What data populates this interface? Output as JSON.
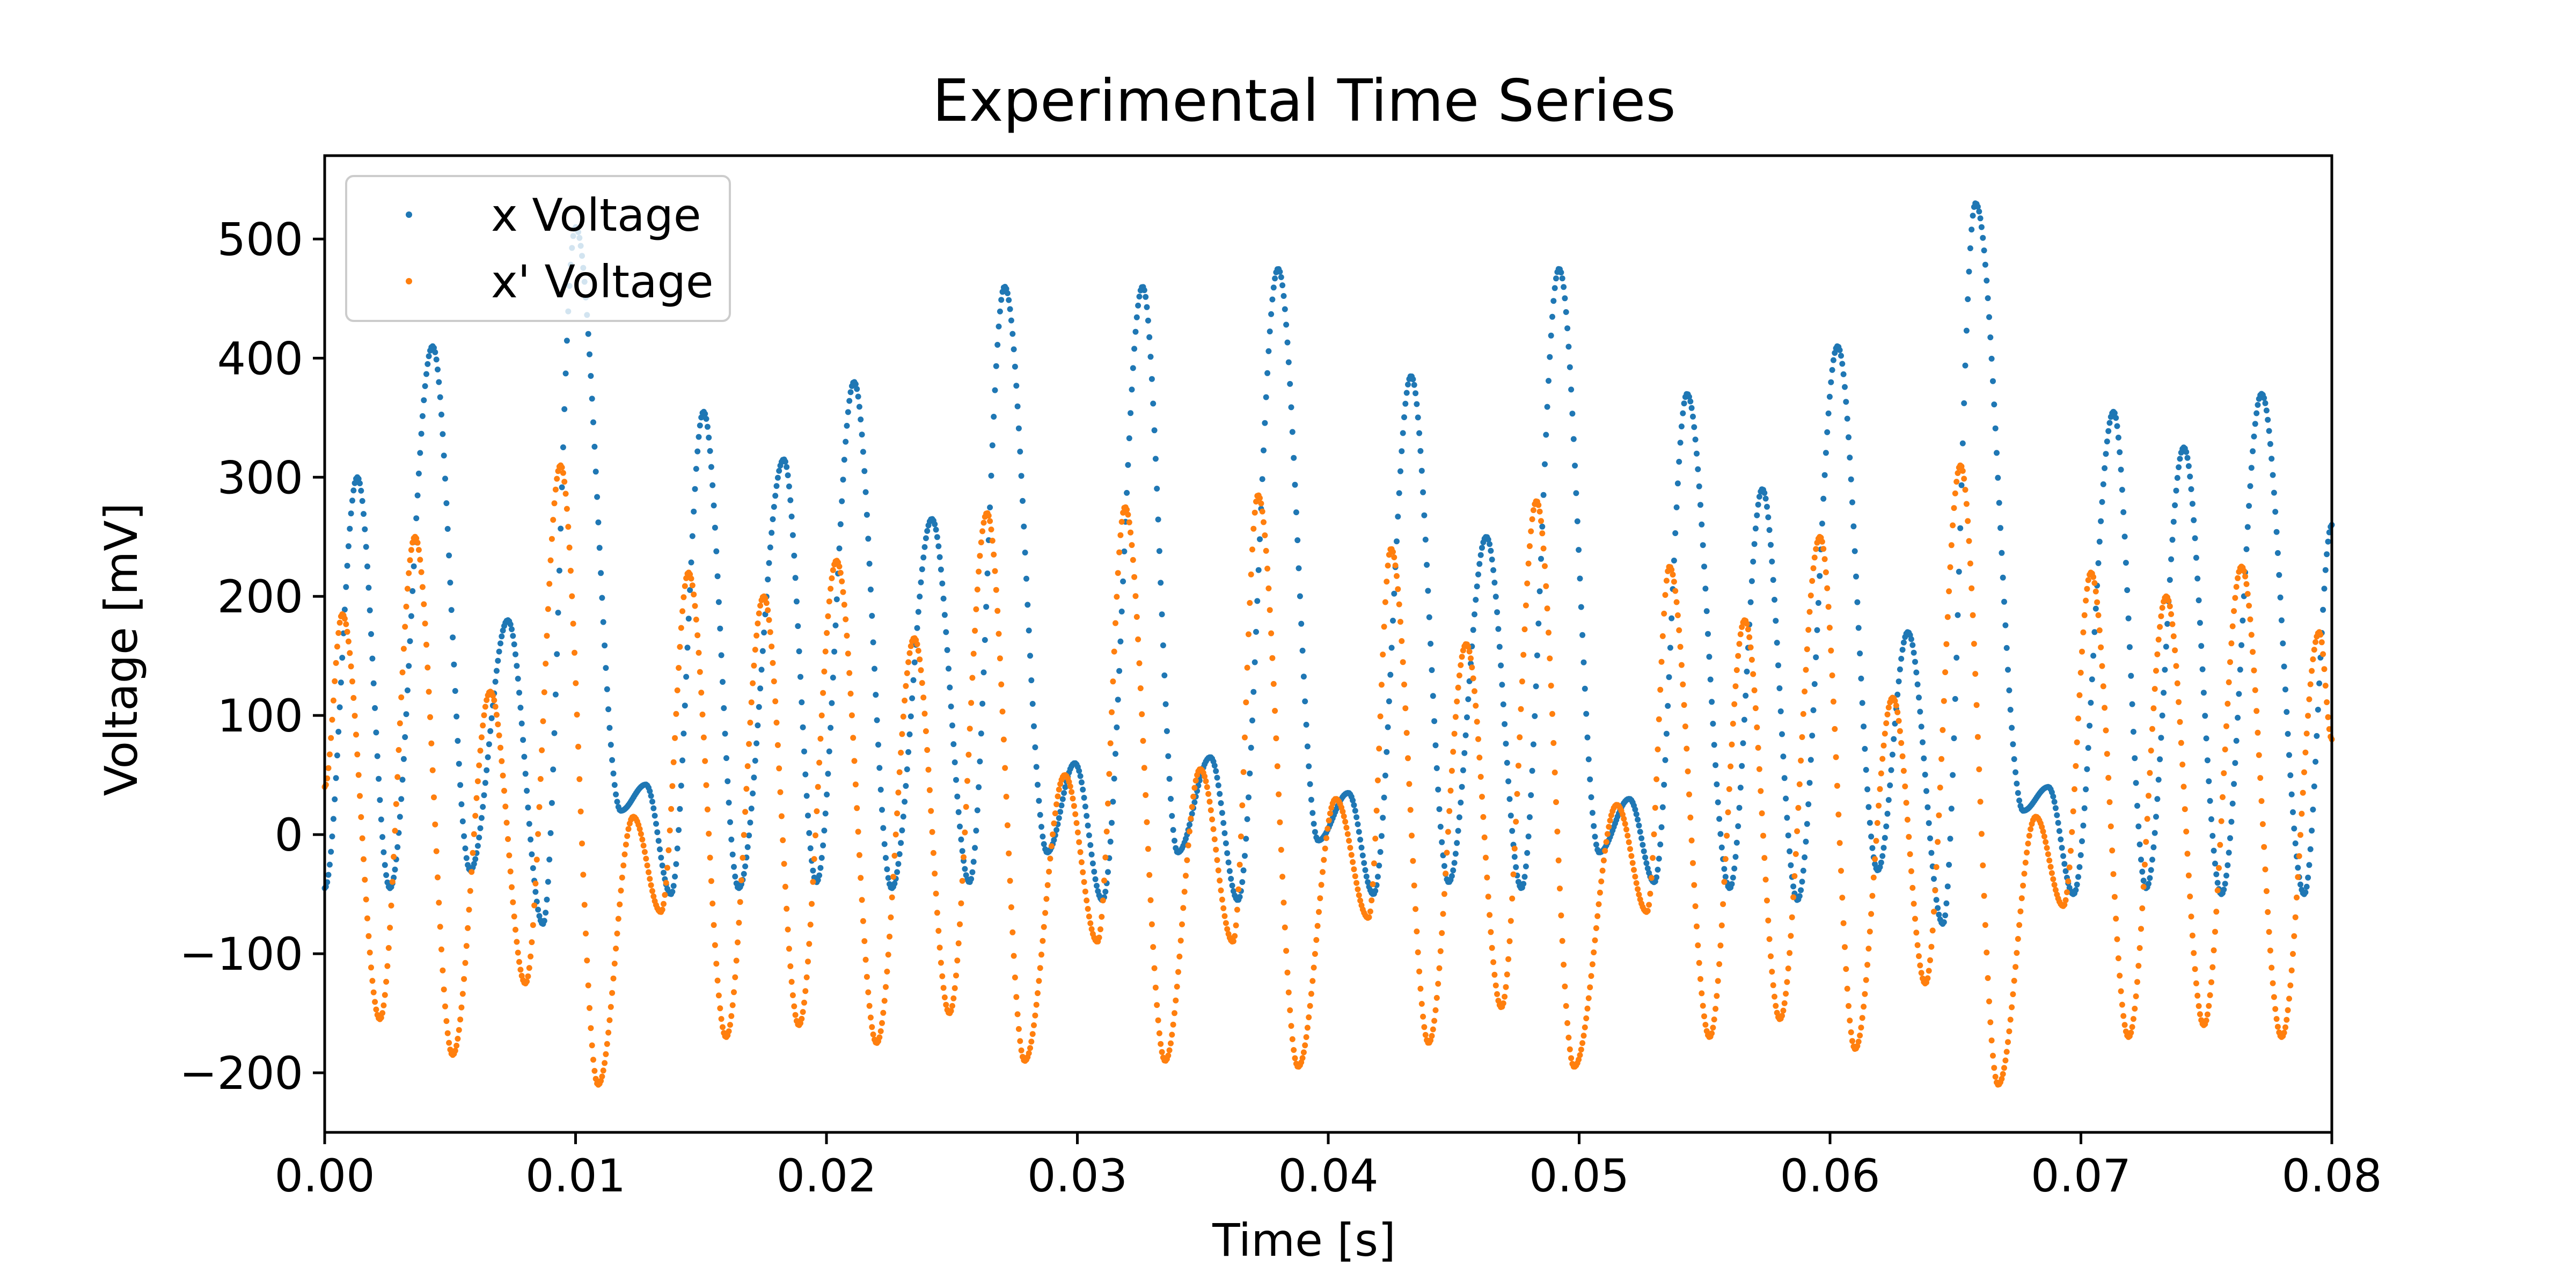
{
  "chart_data": {
    "type": "scatter",
    "title": "Experimental Time Series",
    "xlabel": "Time [s]",
    "ylabel": "Voltage [mV]",
    "xlim": [
      0.0,
      0.08
    ],
    "ylim": [
      -250,
      570
    ],
    "grid": false,
    "legend_position": "top-left",
    "x_ticks": [
      0.0,
      0.01,
      0.02,
      0.03,
      0.04,
      0.05,
      0.06,
      0.07,
      0.08
    ],
    "x_tick_labels": [
      "0.00",
      "0.01",
      "0.02",
      "0.03",
      "0.04",
      "0.05",
      "0.06",
      "0.07",
      "0.08"
    ],
    "y_ticks": [
      -200,
      -100,
      0,
      100,
      200,
      300,
      400,
      500
    ],
    "y_tick_labels": [
      "−200",
      "−100",
      "0",
      "100",
      "200",
      "300",
      "400",
      "500"
    ],
    "sample_count": 1600,
    "series": [
      {
        "name": "x Voltage",
        "color": "#1f77b4",
        "extrema": [
          [
            0.0,
            -45
          ],
          [
            0.0013,
            300
          ],
          [
            0.0026,
            -45
          ],
          [
            0.0043,
            410
          ],
          [
            0.0058,
            -30
          ],
          [
            0.0073,
            180
          ],
          [
            0.0087,
            -75
          ],
          [
            0.01,
            510
          ],
          [
            0.0118,
            20
          ],
          [
            0.0128,
            42
          ],
          [
            0.0138,
            -50
          ],
          [
            0.0151,
            355
          ],
          [
            0.0165,
            -45
          ],
          [
            0.0183,
            315
          ],
          [
            0.0196,
            -40
          ],
          [
            0.0211,
            380
          ],
          [
            0.0226,
            -45
          ],
          [
            0.0242,
            265
          ],
          [
            0.0257,
            -40
          ],
          [
            0.0271,
            460
          ],
          [
            0.0288,
            -15
          ],
          [
            0.0299,
            60
          ],
          [
            0.031,
            -55
          ],
          [
            0.0326,
            460
          ],
          [
            0.034,
            -15
          ],
          [
            0.0353,
            65
          ],
          [
            0.0364,
            -55
          ],
          [
            0.038,
            475
          ],
          [
            0.0396,
            -5
          ],
          [
            0.0408,
            35
          ],
          [
            0.0418,
            -50
          ],
          [
            0.0433,
            385
          ],
          [
            0.0448,
            -40
          ],
          [
            0.0463,
            250
          ],
          [
            0.0477,
            -45
          ],
          [
            0.0492,
            475
          ],
          [
            0.0508,
            -15
          ],
          [
            0.052,
            30
          ],
          [
            0.053,
            -40
          ],
          [
            0.0543,
            370
          ],
          [
            0.056,
            -45
          ],
          [
            0.0573,
            290
          ],
          [
            0.0587,
            -55
          ],
          [
            0.0603,
            410
          ],
          [
            0.0619,
            -30
          ],
          [
            0.0631,
            170
          ],
          [
            0.0645,
            -75
          ],
          [
            0.0658,
            530
          ],
          [
            0.0677,
            20
          ],
          [
            0.0687,
            40
          ],
          [
            0.0697,
            -50
          ],
          [
            0.0713,
            355
          ],
          [
            0.0726,
            -45
          ],
          [
            0.0741,
            325
          ],
          [
            0.0756,
            -50
          ],
          [
            0.0772,
            370
          ],
          [
            0.0789,
            -50
          ],
          [
            0.08,
            260
          ]
        ]
      },
      {
        "name": "x' Voltage",
        "color": "#ff7f0e",
        "extrema": [
          [
            0.0,
            40
          ],
          [
            0.0007,
            185
          ],
          [
            0.0022,
            -155
          ],
          [
            0.0036,
            250
          ],
          [
            0.0051,
            -185
          ],
          [
            0.0066,
            120
          ],
          [
            0.008,
            -125
          ],
          [
            0.0094,
            310
          ],
          [
            0.0109,
            -210
          ],
          [
            0.0123,
            15
          ],
          [
            0.0134,
            -65
          ],
          [
            0.0145,
            220
          ],
          [
            0.016,
            -170
          ],
          [
            0.0175,
            200
          ],
          [
            0.0189,
            -160
          ],
          [
            0.0204,
            230
          ],
          [
            0.022,
            -175
          ],
          [
            0.0235,
            165
          ],
          [
            0.0249,
            -150
          ],
          [
            0.0264,
            270
          ],
          [
            0.0279,
            -190
          ],
          [
            0.0295,
            50
          ],
          [
            0.0308,
            -90
          ],
          [
            0.0319,
            275
          ],
          [
            0.0335,
            -190
          ],
          [
            0.0349,
            55
          ],
          [
            0.0362,
            -90
          ],
          [
            0.0372,
            285
          ],
          [
            0.0388,
            -195
          ],
          [
            0.0403,
            30
          ],
          [
            0.0416,
            -70
          ],
          [
            0.0425,
            240
          ],
          [
            0.044,
            -175
          ],
          [
            0.0455,
            160
          ],
          [
            0.0469,
            -145
          ],
          [
            0.0483,
            280
          ],
          [
            0.0498,
            -195
          ],
          [
            0.0515,
            25
          ],
          [
            0.0527,
            -65
          ],
          [
            0.0536,
            225
          ],
          [
            0.0552,
            -170
          ],
          [
            0.0566,
            180
          ],
          [
            0.058,
            -155
          ],
          [
            0.0596,
            250
          ],
          [
            0.061,
            -180
          ],
          [
            0.0625,
            115
          ],
          [
            0.0638,
            -125
          ],
          [
            0.0652,
            310
          ],
          [
            0.0667,
            -210
          ],
          [
            0.0682,
            15
          ],
          [
            0.0693,
            -60
          ],
          [
            0.0704,
            220
          ],
          [
            0.0719,
            -170
          ],
          [
            0.0734,
            200
          ],
          [
            0.0749,
            -160
          ],
          [
            0.0764,
            225
          ],
          [
            0.078,
            -170
          ],
          [
            0.0795,
            170
          ],
          [
            0.08,
            80
          ]
        ]
      }
    ]
  }
}
